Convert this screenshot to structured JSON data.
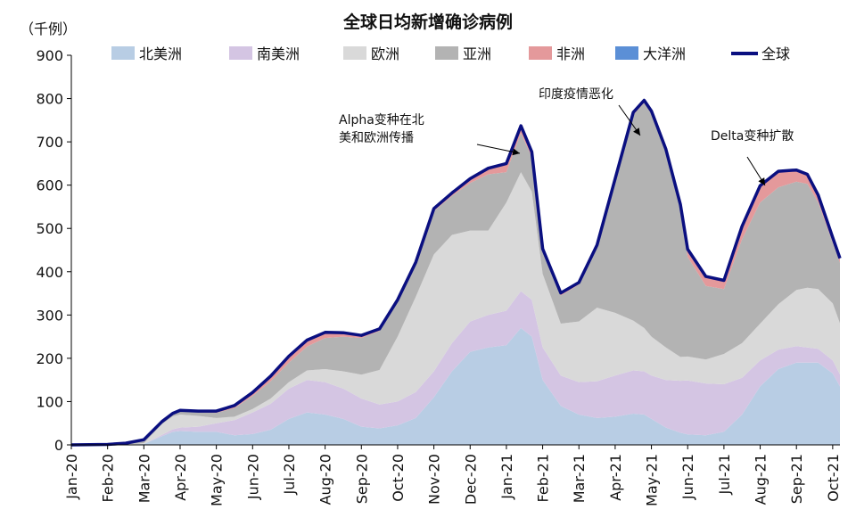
{
  "chart_data": {
    "type": "area",
    "title": "全球日均新增确诊病例",
    "unit_label": "（千例）",
    "ylim": [
      0,
      900
    ],
    "yticks": [
      0,
      100,
      200,
      300,
      400,
      500,
      600,
      700,
      800,
      900
    ],
    "x_range": [
      0,
      21.2
    ],
    "x_ticks": [
      {
        "label": "Jan-20",
        "x": 0
      },
      {
        "label": "Feb-20",
        "x": 1
      },
      {
        "label": "Mar-20",
        "x": 2
      },
      {
        "label": "Apr-20",
        "x": 3
      },
      {
        "label": "May-20",
        "x": 4
      },
      {
        "label": "Jun-20",
        "x": 5
      },
      {
        "label": "Jul-20",
        "x": 6
      },
      {
        "label": "Aug-20",
        "x": 7
      },
      {
        "label": "Sep-20",
        "x": 8
      },
      {
        "label": "Oct-20",
        "x": 9
      },
      {
        "label": "Nov-20",
        "x": 10
      },
      {
        "label": "Dec-20",
        "x": 11
      },
      {
        "label": "Jan-21",
        "x": 12
      },
      {
        "label": "Feb-21",
        "x": 13
      },
      {
        "label": "Mar-21",
        "x": 14
      },
      {
        "label": "Apr-21",
        "x": 15
      },
      {
        "label": "May-21",
        "x": 16
      },
      {
        "label": "Jun-21",
        "x": 17
      },
      {
        "label": "Jul-21",
        "x": 18
      },
      {
        "label": "Aug-21",
        "x": 19
      },
      {
        "label": "Sep-21",
        "x": 20
      },
      {
        "label": "Oct-21",
        "x": 21
      }
    ],
    "x": [
      0,
      1,
      1.5,
      2,
      2.5,
      2.8,
      3,
      3.5,
      4,
      4.5,
      5,
      5.5,
      6,
      6.5,
      7,
      7.5,
      8,
      8.5,
      9,
      9.5,
      10,
      10.5,
      11,
      11.5,
      12,
      12.4,
      12.7,
      13,
      13.5,
      14,
      14.5,
      15,
      15.5,
      15.8,
      16,
      16.4,
      16.8,
      17,
      17.5,
      18,
      18.5,
      19,
      19.5,
      20,
      20.3,
      20.6,
      21,
      21.2
    ],
    "series": [
      {
        "name": "北美洲",
        "color": "#b8cde4",
        "values": [
          0,
          0,
          1,
          2,
          20,
          30,
          32,
          30,
          30,
          22,
          25,
          35,
          60,
          75,
          70,
          60,
          42,
          38,
          45,
          62,
          110,
          170,
          215,
          225,
          230,
          270,
          250,
          150,
          90,
          70,
          62,
          65,
          72,
          70,
          60,
          40,
          28,
          24,
          22,
          30,
          70,
          135,
          175,
          190,
          190,
          190,
          165,
          135
        ]
      },
      {
        "name": "南美洲",
        "color": "#d4c5e3",
        "values": [
          0,
          0,
          0,
          0,
          3,
          6,
          8,
          12,
          20,
          35,
          50,
          60,
          70,
          75,
          75,
          70,
          65,
          55,
          55,
          60,
          60,
          65,
          70,
          75,
          80,
          85,
          85,
          75,
          70,
          75,
          85,
          95,
          100,
          100,
          100,
          110,
          120,
          125,
          120,
          110,
          85,
          60,
          45,
          38,
          35,
          32,
          30,
          28
        ]
      },
      {
        "name": "欧洲",
        "color": "#d9d9d9",
        "values": [
          0,
          0,
          0,
          2,
          25,
          30,
          30,
          25,
          12,
          8,
          8,
          12,
          15,
          22,
          30,
          40,
          55,
          80,
          150,
          220,
          270,
          250,
          210,
          195,
          250,
          275,
          250,
          170,
          120,
          140,
          170,
          145,
          115,
          100,
          90,
          75,
          55,
          55,
          55,
          70,
          80,
          85,
          105,
          130,
          138,
          138,
          132,
          118
        ]
      },
      {
        "name": "亚洲",
        "color": "#b3b3b3",
        "values": [
          0,
          1,
          3,
          8,
          5,
          6,
          8,
          8,
          12,
          20,
          30,
          40,
          45,
          55,
          72,
          80,
          85,
          90,
          80,
          75,
          100,
          90,
          110,
          130,
          70,
          90,
          80,
          50,
          65,
          85,
          140,
          305,
          475,
          520,
          515,
          450,
          340,
          230,
          170,
          150,
          240,
          280,
          270,
          250,
          240,
          200,
          140,
          140
        ]
      },
      {
        "name": "非洲",
        "color": "#e4999b",
        "values": [
          0,
          0,
          0,
          0,
          1,
          1,
          2,
          3,
          4,
          6,
          8,
          12,
          15,
          15,
          12,
          8,
          6,
          5,
          5,
          5,
          6,
          7,
          10,
          14,
          20,
          17,
          12,
          8,
          6,
          5,
          5,
          5,
          6,
          6,
          6,
          8,
          12,
          18,
          22,
          20,
          30,
          38,
          35,
          25,
          20,
          15,
          10,
          8
        ]
      },
      {
        "name": "大洋洲",
        "color": "#5b8fd6",
        "values": [
          0,
          0,
          0,
          0,
          0,
          0,
          0,
          0,
          0,
          0,
          0,
          0,
          0,
          0,
          1,
          1,
          0,
          0,
          0,
          0,
          0,
          0,
          0,
          0,
          0,
          0,
          0,
          0,
          0,
          0,
          0,
          0,
          0,
          0,
          0,
          0,
          0,
          0,
          0,
          0,
          0,
          1,
          2,
          2,
          2,
          2,
          2,
          2
        ]
      }
    ],
    "total": {
      "name": "全球",
      "color": "#0a0f80"
    },
    "annotations": [
      {
        "lines": [
          "Alpha变种在北",
          "美和欧洲传播"
        ],
        "x": 12.4,
        "y": 700
      },
      {
        "lines": [
          "印度疫情恶化"
        ],
        "x": 16.0,
        "y": 770
      },
      {
        "lines": [
          "Delta变种扩散"
        ],
        "x": 19.4,
        "y": 590
      }
    ]
  }
}
